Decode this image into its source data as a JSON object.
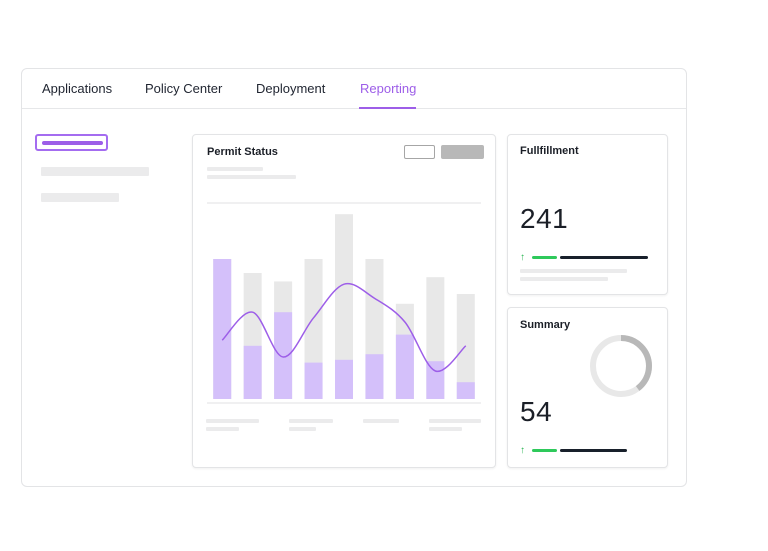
{
  "tabs": [
    {
      "label": "Applications",
      "active": false
    },
    {
      "label": "Policy Center",
      "active": false
    },
    {
      "label": "Deployment",
      "active": false
    },
    {
      "label": "Reporting",
      "active": true
    }
  ],
  "permit_card": {
    "title": "Permit Status"
  },
  "fulfillment_card": {
    "title": "Fullfillment",
    "value": "241",
    "trend_icon": "arrow-up-icon"
  },
  "summary_card": {
    "title": "Summary",
    "value": "54",
    "trend_icon": "arrow-up-icon",
    "donut_icon": "donut-ring-icon"
  },
  "colors": {
    "accent": "#9d5ee8",
    "bar_purple": "#d4c0fa",
    "bar_gray": "#e8e8e8",
    "positive": "#2ec95b",
    "dark": "#18202b"
  },
  "chart_data": {
    "type": "bar",
    "title": "Permit Status",
    "categories": [
      "",
      "",
      "",
      "",
      "",
      "",
      "",
      "",
      ""
    ],
    "series": [
      {
        "values": [
          100,
          90,
          84,
          100,
          132,
          100,
          68,
          87,
          75
        ]
      },
      {
        "values": [
          100,
          38,
          62,
          26,
          28,
          32,
          46,
          27,
          12
        ]
      }
    ],
    "line": [
      42,
      62,
      30,
      58,
      82,
      72,
      55,
      20,
      38
    ],
    "ylim": [
      0,
      140
    ]
  }
}
